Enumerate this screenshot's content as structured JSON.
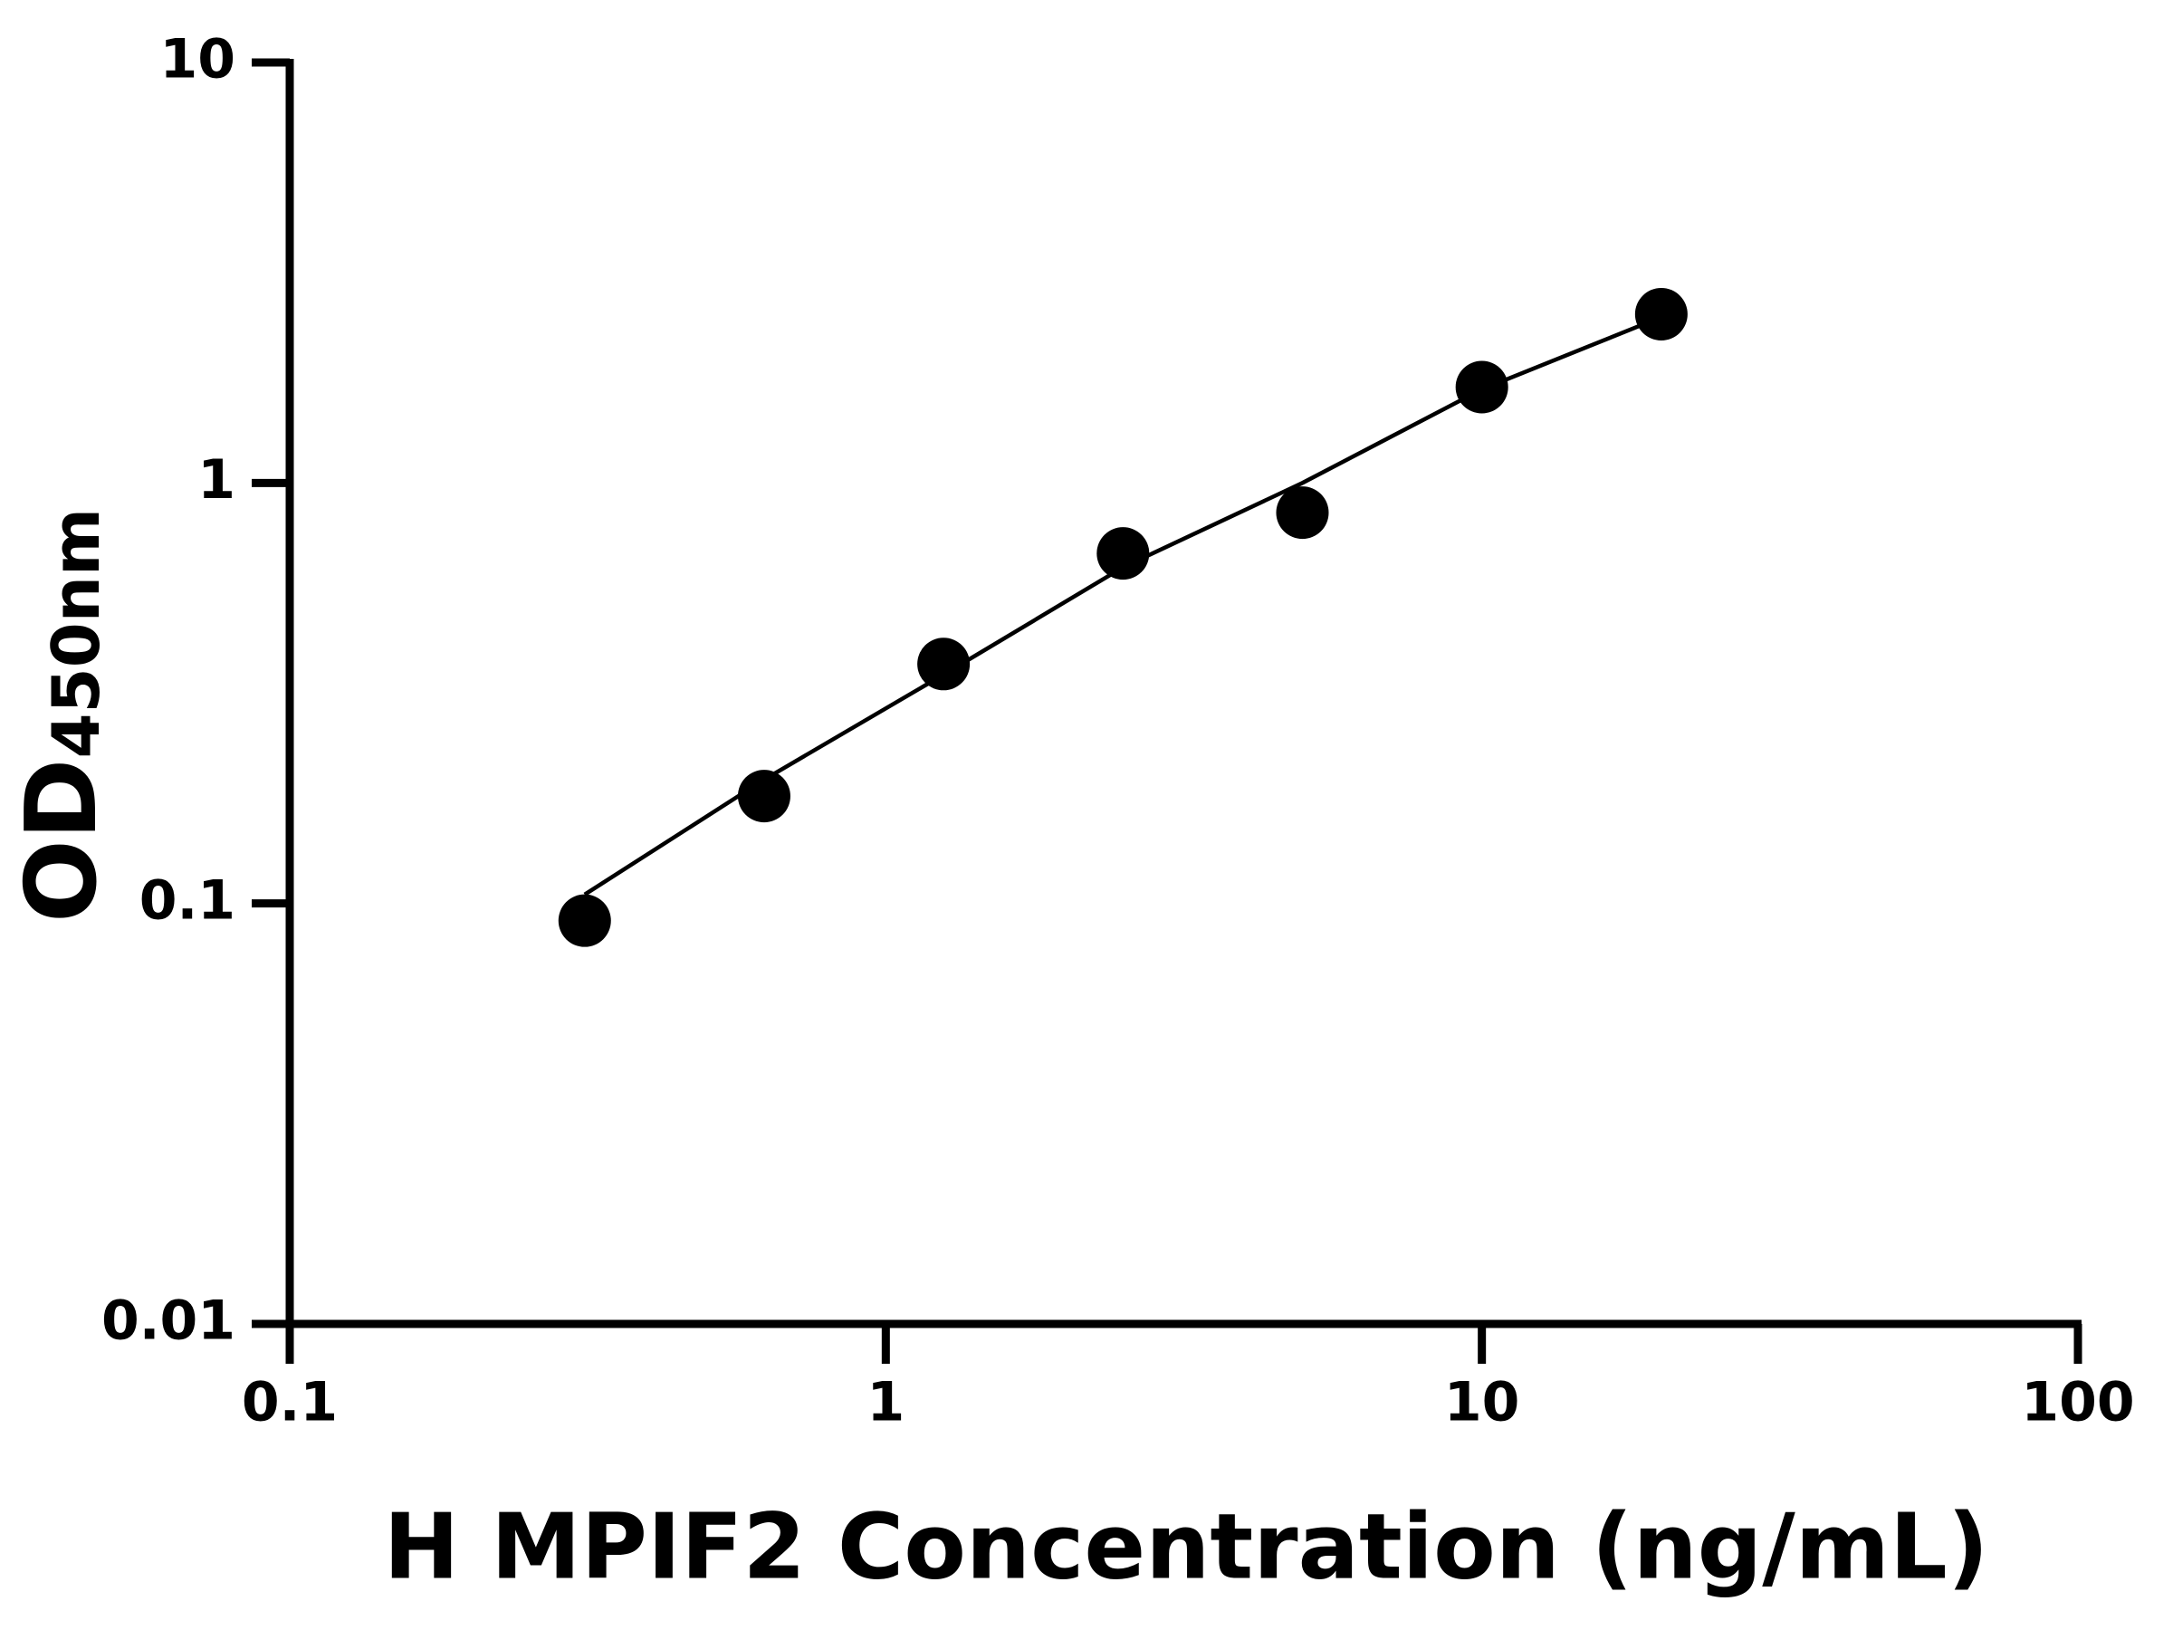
{
  "chart_data": {
    "type": "scatter",
    "xlabel": "H MPIF2 Concentration (ng/mL)",
    "ylabel": {
      "main": "OD",
      "subscript": "450nm"
    },
    "x": [
      0.3125,
      0.625,
      1.25,
      2.5,
      5,
      10,
      20
    ],
    "values": [
      0.091,
      0.18,
      0.371,
      0.68,
      0.85,
      1.69,
      2.52
    ],
    "color": "#000000",
    "curve": {
      "x": [
        0.3125,
        0.625,
        1.25,
        2.5,
        5,
        10,
        20
      ],
      "values": [
        0.105,
        0.197,
        0.35,
        0.63,
        1.0,
        1.67,
        2.48
      ],
      "color": "#000000"
    },
    "xlog": true,
    "ylog": true,
    "xlim": [
      0.1,
      100
    ],
    "xticks": [
      0.1,
      1,
      10,
      100
    ],
    "ylim": [
      0.01,
      10
    ],
    "yticks": [
      0.01,
      0.1,
      1,
      10
    ],
    "grid": false
  }
}
